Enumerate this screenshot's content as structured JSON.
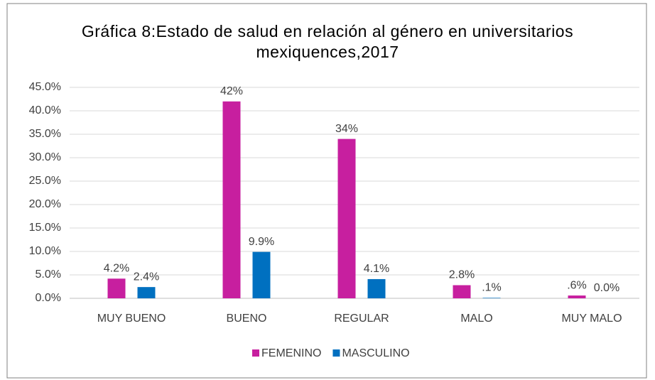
{
  "chart_data": {
    "type": "bar",
    "title": "Gráfica 8:Estado de salud en relación al género en universitarios mexiquences,2017",
    "categories": [
      "MUY BUENO",
      "BUENO",
      "REGULAR",
      "MALO",
      "MUY MALO"
    ],
    "series": [
      {
        "name": "FEMENINO",
        "color": "#c71f9f",
        "values": [
          4.2,
          42,
          34,
          2.8,
          0.6
        ],
        "value_labels": [
          "4.2%",
          "42%",
          "34%",
          "2.8%",
          ".6%"
        ]
      },
      {
        "name": "MASCULINO",
        "color": "#0070c0",
        "values": [
          2.4,
          9.9,
          4.1,
          0.1,
          0.0
        ],
        "value_labels": [
          "2.4%",
          "9.9%",
          "4.1%",
          ".1%",
          "0.0%"
        ]
      }
    ],
    "ylim": [
      0,
      45
    ],
    "yticks": [
      {
        "value": 0,
        "label": "0.0%"
      },
      {
        "value": 5,
        "label": "5.0%"
      },
      {
        "value": 10,
        "label": "10.0%"
      },
      {
        "value": 15,
        "label": "15.0%"
      },
      {
        "value": 20,
        "label": "20.0%"
      },
      {
        "value": 25,
        "label": "25.0%"
      },
      {
        "value": 30,
        "label": "30.0%"
      },
      {
        "value": 35,
        "label": "35.0%"
      },
      {
        "value": 40,
        "label": "40.0%"
      },
      {
        "value": 45,
        "label": "45.0%"
      }
    ],
    "grid": true,
    "legend": "bottom"
  }
}
